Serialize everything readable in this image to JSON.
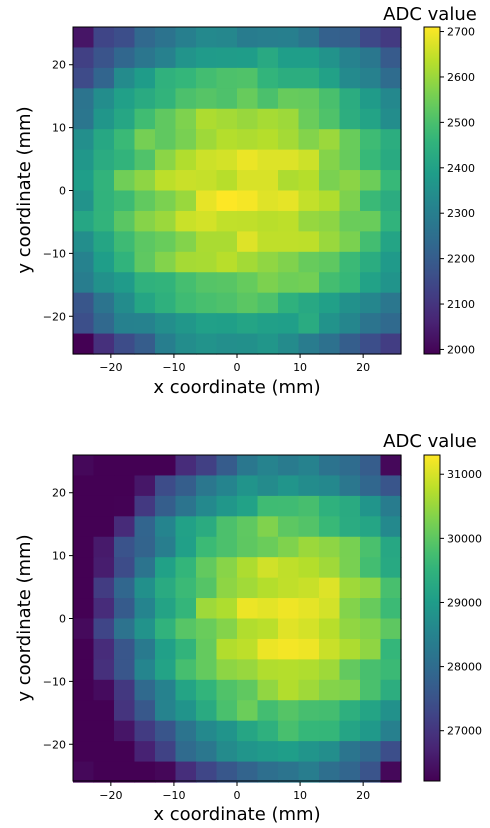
{
  "chart_data": [
    {
      "type": "heatmap",
      "title": "",
      "xlabel": "x coordinate (mm)",
      "ylabel": "y coordinate (mm)",
      "colorbar_label": "ADC value",
      "colormap": "viridis",
      "xlim": [
        -26,
        26
      ],
      "ylim": [
        -26,
        26
      ],
      "grid_size": 16,
      "x_ticks": [
        -20,
        -10,
        0,
        10,
        20
      ],
      "x_tick_labels": [
        "−20",
        "−10",
        "0",
        "10",
        "20"
      ],
      "y_ticks": [
        20,
        10,
        0,
        -10,
        -20
      ],
      "y_tick_labels": [
        "20",
        "10",
        "0",
        "−10",
        "−20"
      ],
      "colorbar_range": [
        1990,
        2710
      ],
      "colorbar_ticks": [
        2700,
        2600,
        2500,
        2400,
        2300,
        2200,
        2100,
        2000
      ],
      "colorbar_tick_labels": [
        "2700",
        "2600",
        "2500",
        "2400",
        "2300",
        "2200",
        "2100",
        "2000"
      ],
      "value_model": {
        "base": 1990,
        "peak": 2700,
        "center_x_mm": 1.5,
        "center_y_mm": -0.5,
        "sigma_x_mm": 30,
        "sigma_y_mm": 26,
        "edge_power": 2.0,
        "corner_min_at": "bottom-left"
      }
    },
    {
      "type": "heatmap",
      "title": "",
      "xlabel": "x coordinate (mm)",
      "ylabel": "y coordinate (mm)",
      "colorbar_label": "ADC value",
      "colormap": "viridis",
      "xlim": [
        -26,
        26
      ],
      "ylim": [
        -26,
        26
      ],
      "grid_size": 16,
      "x_ticks": [
        -20,
        -10,
        0,
        10,
        20
      ],
      "x_tick_labels": [
        "−20",
        "−10",
        "0",
        "10",
        "20"
      ],
      "y_ticks": [
        20,
        10,
        0,
        -10,
        -20
      ],
      "y_tick_labels": [
        "20",
        "10",
        "0",
        "−10",
        "−20"
      ],
      "colorbar_range": [
        26200,
        31300
      ],
      "colorbar_ticks": [
        31000,
        30000,
        29000,
        28000,
        27000
      ],
      "colorbar_tick_labels": [
        "31000",
        "30000",
        "29000",
        "28000",
        "27000"
      ],
      "value_model": {
        "base": 26200,
        "peak": 31250,
        "center_x_mm": 8,
        "center_y_mm": 0,
        "sigma_x_mm": 24,
        "sigma_y_mm": 24,
        "edge_power": 2.0,
        "corner_min_at": "corners"
      }
    }
  ]
}
